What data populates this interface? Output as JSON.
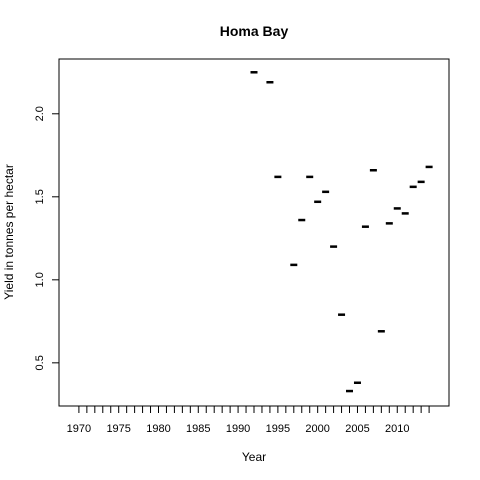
{
  "chart_data": {
    "type": "scatter",
    "title": "Homa Bay",
    "xlabel": "Year",
    "ylabel": "Yield in tonnes per hectar",
    "xlim": [
      1967.5,
      2016.5
    ],
    "ylim": [
      0.24,
      2.33
    ],
    "x_tick_labels": [
      "1970",
      "1975",
      "1980",
      "1985",
      "1990",
      "1995",
      "2000",
      "2005",
      "2010"
    ],
    "x_tick_values": [
      1970,
      1975,
      1980,
      1985,
      1990,
      1995,
      2000,
      2005,
      2010
    ],
    "x_minor_ticks_every": 1,
    "x_minor_ticks_range": [
      1970,
      2014
    ],
    "y_tick_labels": [
      "0.5",
      "1.0",
      "1.5",
      "2.0"
    ],
    "y_tick_values": [
      0.5,
      1.0,
      1.5,
      2.0
    ],
    "grid": false,
    "marker": "dash",
    "color": "#000000",
    "x": [
      1992,
      1994,
      1995,
      1997,
      1998,
      1999,
      2000,
      2001,
      2002,
      2003,
      2004,
      2005,
      2006,
      2007,
      2008,
      2009,
      2010,
      2011,
      2012,
      2013,
      2014
    ],
    "y": [
      2.25,
      2.19,
      1.62,
      1.09,
      1.36,
      1.62,
      1.47,
      1.53,
      1.2,
      0.79,
      0.33,
      0.38,
      1.32,
      1.66,
      0.69,
      1.34,
      1.43,
      1.4,
      1.56,
      1.59,
      1.68
    ]
  }
}
